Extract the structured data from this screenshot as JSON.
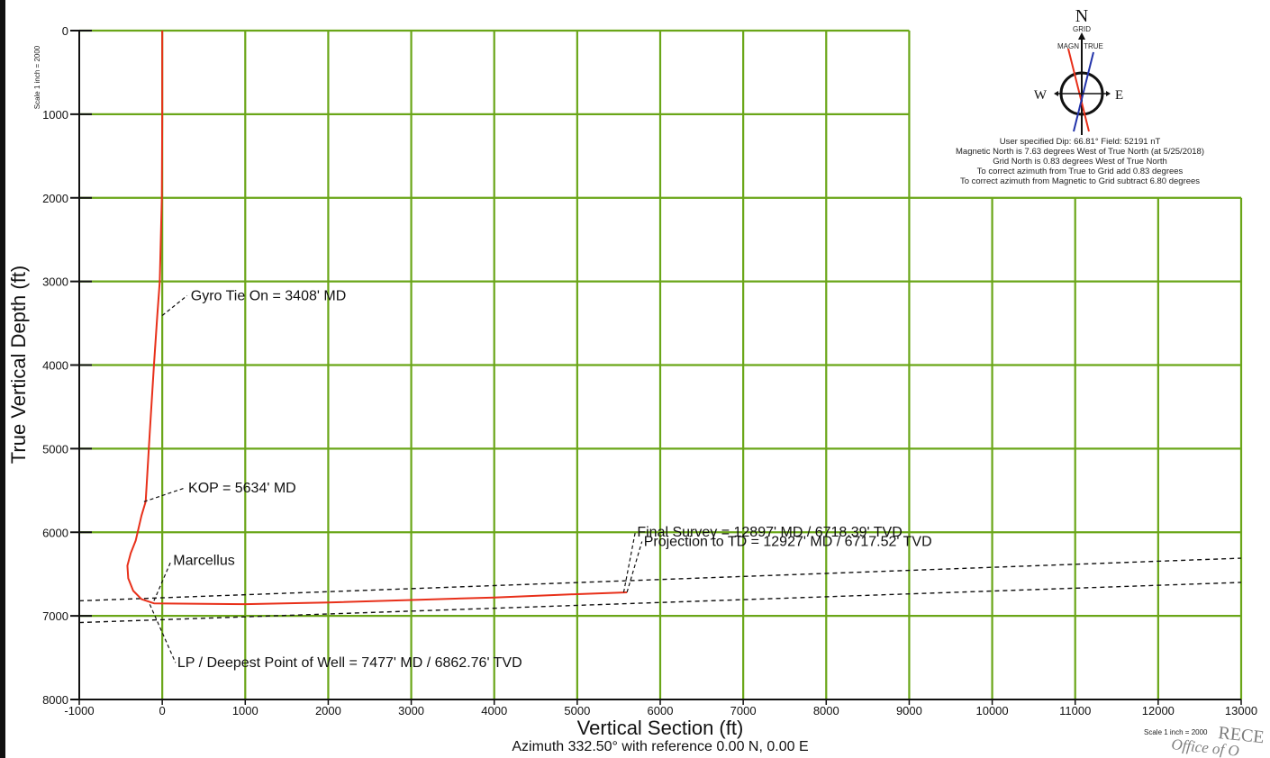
{
  "chart_data": {
    "type": "line",
    "xlabel": "Vertical Section (ft)",
    "ylabel": "True Vertical Depth (ft)",
    "subtitle": "Azimuth 332.50° with reference 0.00 N, 0.00 E",
    "y_scale_note": "Scale 1 inch = 2000",
    "x_scale_note": "Scale 1 inch = 2000",
    "xlim": [
      -1000,
      13000
    ],
    "ylim": [
      0,
      8000
    ],
    "y_inverted": true,
    "x_ticks": [
      "-1000",
      "0",
      "1000",
      "2000",
      "3000",
      "4000",
      "5000",
      "6000",
      "7000",
      "8000",
      "9000",
      "10000",
      "11000",
      "12000",
      "13000"
    ],
    "y_ticks": [
      "0",
      "1000",
      "2000",
      "3000",
      "4000",
      "5000",
      "6000",
      "7000",
      "8000"
    ],
    "grid": true,
    "grid_color": "#6aa618",
    "wellpath_color": "#e8301a",
    "series": [
      {
        "x": [
          0,
          0,
          -5,
          -30,
          -60,
          -100,
          -150,
          -200,
          -250,
          -320,
          -380,
          -420,
          -410,
          -350,
          -250,
          -100,
          1000,
          2000,
          3000,
          4000,
          5000,
          5600
        ],
        "y": [
          0,
          1000,
          2000,
          3000,
          3408,
          4000,
          4800,
          5634,
          5800,
          6100,
          6250,
          6400,
          6550,
          6700,
          6800,
          6850,
          6860,
          6840,
          6810,
          6780,
          6740,
          6718.39
        ]
      }
    ],
    "formation_lines": [
      {
        "x": [
          -1000,
          13000
        ],
        "y": [
          6820,
          6310
        ]
      },
      {
        "x": [
          -1000,
          13000
        ],
        "y": [
          7080,
          6600
        ]
      }
    ],
    "annotations": [
      {
        "text": "Gyro Tie On = 3408' MD",
        "x": 0,
        "y": 3408
      },
      {
        "text": "KOP = 5634' MD",
        "x": -220,
        "y": 5634
      },
      {
        "text": "Marcellus",
        "x": -100,
        "y": 6820
      },
      {
        "text": "Final Survey = 12897' MD / 6718.39' TVD",
        "x": 5560,
        "y": 6718
      },
      {
        "text": "Projection to TD = 12927' MD / 6717.52' TVD",
        "x": 5600,
        "y": 6717
      },
      {
        "text": "LP / Deepest Point of Well = 7477' MD / 6862.76' TVD",
        "x": -150,
        "y": 6862
      }
    ]
  },
  "compass": {
    "north": "N",
    "grid_label": "GRID",
    "west": "W",
    "east": "E",
    "mag_tag": "MAGN",
    "true_tag": "TRUE",
    "notes": [
      "User specified Dip: 66.81°  Field: 52191 nT",
      "Magnetic North is 7.63 degrees West of True North (at 5/25/2018)",
      "Grid North is 0.83 degrees West of True North",
      "To correct azimuth from True to Grid add 0.83 degrees",
      "To correct azimuth from Magnetic to Grid subtract 6.80 degrees"
    ]
  },
  "stamp": {
    "line1": "RECE",
    "line2": "Office of O"
  }
}
